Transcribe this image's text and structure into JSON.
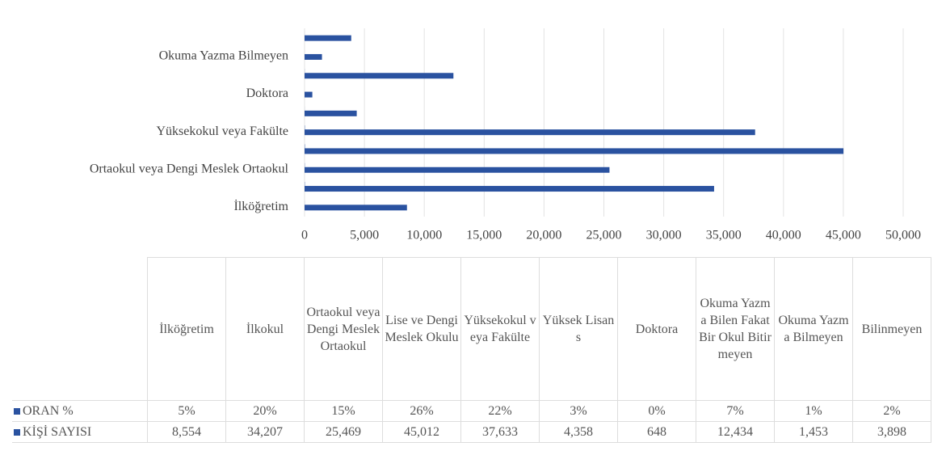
{
  "chart_data": {
    "type": "hbar",
    "categories": [
      "İlköğretim",
      "İlkokul",
      "Ortaokul veya Dengi Meslek Ortaokul",
      "Lise ve Dengi Meslek Okulu",
      "Yüksekokul veya Fakülte",
      "Yüksek Lisans",
      "Doktora",
      "Okuma Yazma Bilen Fakat Bir Okul Bitirmeyen",
      "Okuma Yazma Bilmeyen",
      "Bilinmeyen"
    ],
    "series": [
      {
        "name": "ORAN %",
        "color": "#2a52a0",
        "values": [
          5,
          20,
          15,
          26,
          22,
          3,
          0,
          7,
          1,
          2
        ],
        "value_labels": [
          "5%",
          "20%",
          "15%",
          "26%",
          "22%",
          "3%",
          "0%",
          "7%",
          "1%",
          "2%"
        ]
      },
      {
        "name": "KİŞİ SAYISI",
        "color": "#2a52a0",
        "values": [
          8554,
          34207,
          25469,
          45012,
          37633,
          4358,
          648,
          12434,
          1453,
          3898
        ],
        "value_labels": [
          "8,554",
          "34,207",
          "25,469",
          "45,012",
          "37,633",
          "4,358",
          "648",
          "12,434",
          "1,453",
          "3,898"
        ]
      }
    ],
    "xlim": [
      0,
      50000
    ],
    "xticks": [
      0,
      {
        "value": 5000,
        "label": "5,000"
      },
      {
        "value": 10000,
        "label": "10,000"
      },
      {
        "value": 15000,
        "label": "15,000"
      },
      {
        "value": 20000,
        "label": "20,000"
      },
      {
        "value": 25000,
        "label": "25,000"
      },
      {
        "value": 30000,
        "label": "30,000"
      },
      {
        "value": 35000,
        "label": "35,000"
      },
      {
        "value": 40000,
        "label": "40,000"
      },
      {
        "value": 45000,
        "label": "45,000"
      },
      {
        "value": 50000,
        "label": "50,000"
      }
    ],
    "grid": true
  }
}
